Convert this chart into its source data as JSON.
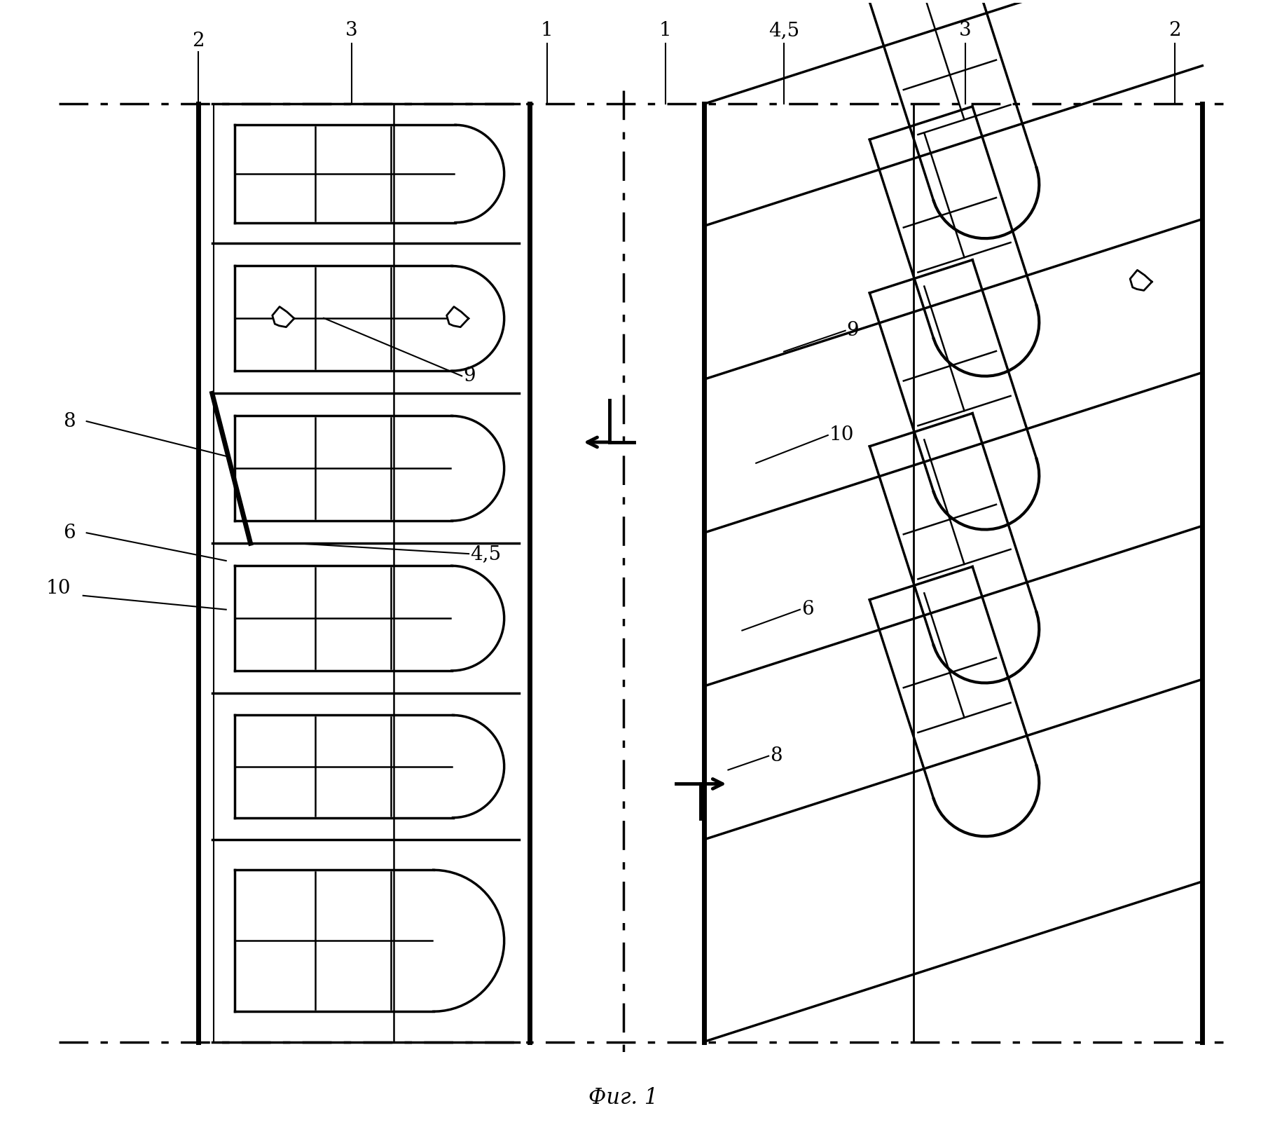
{
  "title": "Фиг. 1",
  "title_style": "italic",
  "title_fontsize": 22,
  "bg_color": "#ffffff",
  "line_color": "#000000",
  "fig_width": 18.3,
  "fig_height": 16.28,
  "label_fontsize": 20
}
